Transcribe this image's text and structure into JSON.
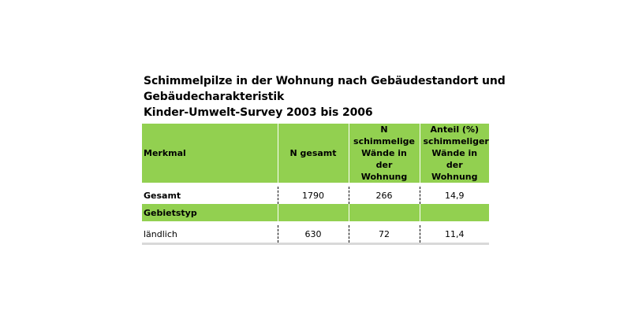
{
  "title": {
    "line1": "Schimmelpilze in der Wohnung nach Gebäudestandort und",
    "line2": "Gebäudecharakteristik",
    "line3": "Kinder-Umwelt-Survey 2003 bis 2006"
  },
  "table": {
    "headers": [
      "Merkmal",
      "N gesamt",
      "N schimmelige Wände in der Wohnung",
      "Anteil (%) schimmeliger Wände in der Wohnung"
    ],
    "rows": [
      {
        "label": "Gesamt",
        "n_total": "1790",
        "n_mold": "266",
        "share": "14,9"
      },
      {
        "label": "Gebietstyp"
      },
      {
        "label": "ländlich",
        "n_total": "630",
        "n_mold": "72",
        "share": "11,4"
      }
    ]
  },
  "colors": {
    "header_green": "#92d050"
  }
}
